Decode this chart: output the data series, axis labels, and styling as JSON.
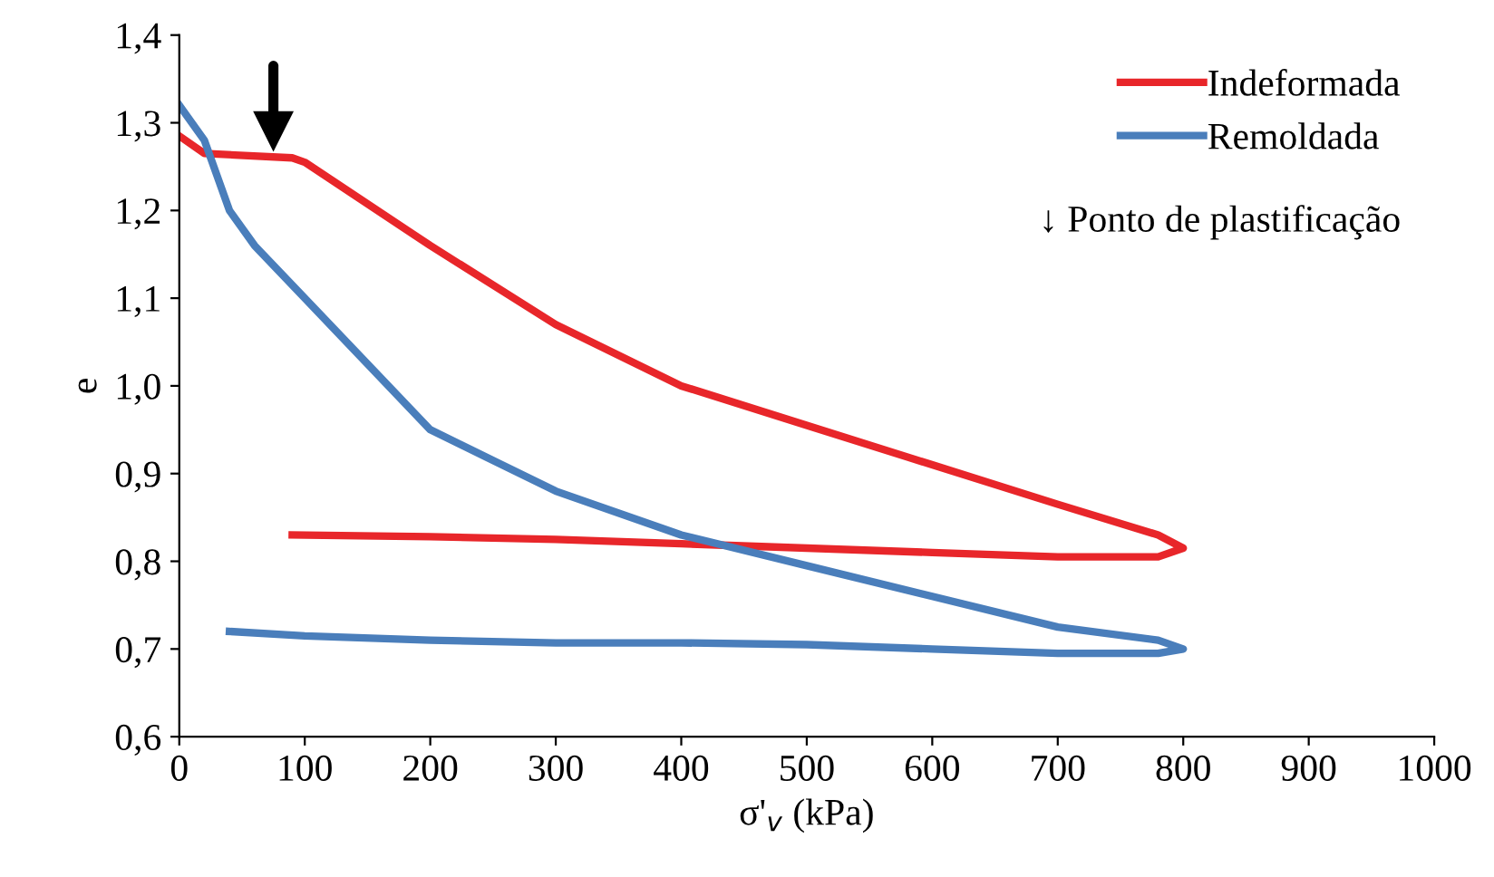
{
  "chart_data": {
    "type": "line",
    "xlabel": "σ'$_{v}$ (kPa)",
    "ylabel": "e",
    "xlim": [
      0,
      1000
    ],
    "xticks": [
      0,
      100,
      200,
      300,
      400,
      500,
      600,
      700,
      800,
      900,
      1000
    ],
    "ylim": [
      0.6,
      1.4
    ],
    "yticks": [
      {
        "value": 0.6,
        "label": "0,6"
      },
      {
        "value": 0.7,
        "label": "0,7"
      },
      {
        "value": 0.8,
        "label": "0,8"
      },
      {
        "value": 0.9,
        "label": "0,9"
      },
      {
        "value": 1.0,
        "label": "1,0"
      },
      {
        "value": 1.1,
        "label": "1,1"
      },
      {
        "value": 1.2,
        "label": "1,2"
      },
      {
        "value": 1.3,
        "label": "1,3"
      },
      {
        "value": 1.4,
        "label": "1,4"
      }
    ],
    "series": [
      {
        "name": "Indeformada",
        "color": "#e8262a",
        "x": [
          0,
          20,
          90,
          100,
          200,
          300,
          400,
          500,
          600,
          700,
          780,
          800,
          780,
          700,
          600,
          500,
          400,
          300,
          200,
          90
        ],
        "values": [
          1.285,
          1.265,
          1.26,
          1.255,
          1.16,
          1.07,
          1.0,
          0.955,
          0.91,
          0.865,
          0.83,
          0.815,
          0.805,
          0.805,
          0.81,
          0.815,
          0.82,
          0.825,
          0.828,
          0.83
        ]
      },
      {
        "name": "Remoldada",
        "color": "#4a7ebb",
        "x": [
          0,
          20,
          40,
          60,
          100,
          200,
          300,
          400,
          500,
          600,
          700,
          780,
          800,
          780,
          700,
          600,
          500,
          400,
          300,
          200,
          100,
          40
        ],
        "values": [
          1.32,
          1.28,
          1.2,
          1.16,
          1.1,
          0.95,
          0.88,
          0.83,
          0.795,
          0.76,
          0.725,
          0.71,
          0.7,
          0.695,
          0.695,
          0.7,
          0.705,
          0.707,
          0.707,
          0.71,
          0.715,
          0.72
        ]
      },
      {
        "type": "scatter",
        "color": "#000000",
        "marker": "triangle",
        "x": [
          75
        ],
        "values": [
          1.29
        ]
      }
    ],
    "annotations": [
      "↓ Ponto de plastificação"
    ],
    "grid": false,
    "legend": "top right",
    "marker": "none",
    "line_style": "solid"
  }
}
